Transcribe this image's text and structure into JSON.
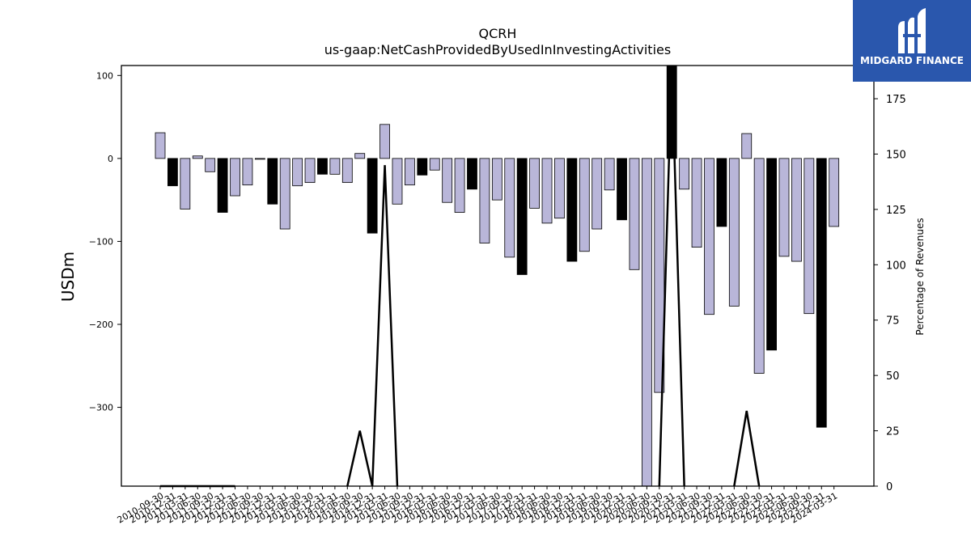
{
  "chart_data": {
    "type": "bar",
    "title": "QCRH",
    "subtitle": "us-gaap:NetCashProvidedByUsedInInvestingActivities",
    "ylabel": "USDm",
    "y2label": "Percentage of Revenues",
    "ylim": [
      -395,
      112
    ],
    "y2lim": [
      0,
      190
    ],
    "yticks": [
      100,
      0,
      -100,
      -200,
      -300
    ],
    "y2ticks": [
      0,
      25,
      50,
      75,
      100,
      125,
      150,
      175
    ],
    "categories": [
      "2010-09-30",
      "2010-12-31",
      "2011-03-31",
      "2011-06-30",
      "2011-09-30",
      "2011-12-31",
      "2012-03-31",
      "2012-06-30",
      "2012-09-30",
      "2012-12-31",
      "2013-03-31",
      "2013-06-30",
      "2013-09-30",
      "2013-12-31",
      "2014-03-31",
      "2014-06-30",
      "2014-09-30",
      "2014-12-31",
      "2015-03-31",
      "2015-06-30",
      "2015-09-30",
      "2015-12-31",
      "2016-03-31",
      "2016-06-30",
      "2016-09-30",
      "2016-12-31",
      "2017-03-31",
      "2017-06-30",
      "2017-09-30",
      "2017-12-31",
      "2018-03-31",
      "2018-06-30",
      "2018-09-30",
      "2018-12-31",
      "2019-03-31",
      "2019-06-30",
      "2019-09-30",
      "2019-12-31",
      "2020-03-31",
      "2020-06-30",
      "2020-09-30",
      "2020-12-31",
      "2021-03-31",
      "2021-06-30",
      "2021-09-30",
      "2021-12-31",
      "2022-03-31",
      "2022-06-30",
      "2022-09-30",
      "2022-12-31",
      "2023-03-31",
      "2023-06-30",
      "2023-09-30",
      "2023-12-31",
      "2024-03-31"
    ],
    "values": [
      31,
      -33,
      -61,
      3,
      -16,
      -65,
      -45,
      -32,
      -1,
      -55,
      -85,
      -33,
      -29,
      -19,
      -19,
      -29,
      6,
      -90,
      41,
      -55,
      -32,
      -20,
      -14,
      -53,
      -65,
      -37,
      -102,
      -50,
      -119,
      -140,
      -60,
      -78,
      -72,
      -124,
      -112,
      -85,
      -38,
      -74,
      -134,
      -420,
      -282,
      140,
      -37,
      -107,
      -188,
      -82,
      -178,
      30,
      -259,
      -231,
      -118,
      -124,
      -187,
      -324,
      -82
    ],
    "bar_colors": [
      "light",
      "dark",
      "light",
      "light",
      "light",
      "dark",
      "light",
      "light",
      "light",
      "dark",
      "light",
      "light",
      "light",
      "dark",
      "light",
      "light",
      "light",
      "dark",
      "light",
      "light",
      "light",
      "dark",
      "light",
      "light",
      "light",
      "dark",
      "light",
      "light",
      "light",
      "dark",
      "light",
      "light",
      "light",
      "dark",
      "light",
      "light",
      "light",
      "dark",
      "light",
      "light",
      "light",
      "dark",
      "light",
      "light",
      "light",
      "dark",
      "light",
      "light",
      "light",
      "dark",
      "light",
      "light",
      "light",
      "dark",
      "light"
    ],
    "line_values": [
      0,
      0,
      0,
      0,
      0,
      0,
      0,
      0,
      0,
      0,
      0,
      0,
      0,
      0,
      0,
      0,
      25,
      0,
      145,
      0,
      0,
      0,
      0,
      0,
      0,
      0,
      0,
      0,
      0,
      0,
      0,
      0,
      0,
      0,
      0,
      0,
      0,
      0,
      0,
      0,
      0,
      195,
      0,
      0,
      0,
      0,
      0,
      34,
      0,
      0,
      0,
      0,
      0,
      0,
      0
    ],
    "line_visible": [
      1,
      1,
      1,
      1,
      1,
      1,
      1,
      0,
      0,
      0,
      0,
      0,
      0,
      0,
      0,
      1,
      1,
      1,
      1,
      1,
      0,
      0,
      0,
      0,
      0,
      0,
      0,
      0,
      0,
      0,
      0,
      0,
      0,
      0,
      0,
      0,
      0,
      0,
      0,
      0,
      1,
      1,
      1,
      0,
      0,
      0,
      1,
      1,
      1,
      0,
      0,
      0,
      0,
      0,
      0
    ],
    "colors": {
      "light": "#b9b6d9",
      "dark": "#000000",
      "line": "#000000"
    }
  },
  "logo": {
    "text": "MIDGARD FINANCE",
    "bg": "#2a57ad"
  }
}
